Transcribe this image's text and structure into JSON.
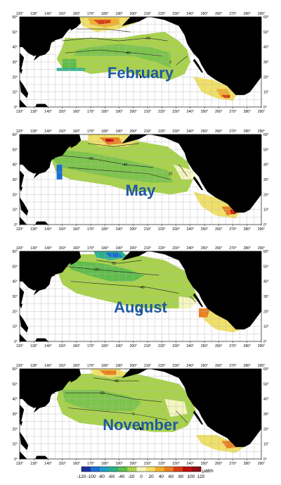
{
  "panels": [
    {
      "month": "February"
    },
    {
      "month": "May"
    },
    {
      "month": "August"
    },
    {
      "month": "November"
    }
  ],
  "axes": {
    "x_ticks": [
      "120°",
      "130°",
      "140°",
      "150°",
      "160°",
      "170°",
      "180°",
      "190°",
      "200°",
      "210°",
      "220°",
      "230°",
      "240°",
      "250°",
      "260°",
      "270°",
      "280°",
      "290°"
    ],
    "y_ticks": [
      "0°",
      "10°",
      "20°",
      "30°",
      "40°",
      "50°",
      "60°"
    ]
  },
  "contour_labels": [
    "-20",
    "-40",
    "0",
    "20",
    "-60"
  ],
  "colorbar": {
    "ticks": [
      "-120",
      "-100",
      "-80",
      "-60",
      "-40",
      "-20",
      "0",
      "20",
      "40",
      "60",
      "80",
      "100",
      "120"
    ],
    "unit": "μatm",
    "colors": [
      "#1a2fa6",
      "#1a6fd4",
      "#1ea0c8",
      "#2cb08c",
      "#5fbd4a",
      "#a8d24a",
      "#f5f5c0",
      "#f0e068",
      "#f0b030",
      "#e88020",
      "#d84018",
      "#c01010",
      "#901010"
    ]
  },
  "colors": {
    "ocean": "#ffffff",
    "land": "#000000",
    "grid": "#b8b8b8",
    "label": "#1e5aa0"
  }
}
